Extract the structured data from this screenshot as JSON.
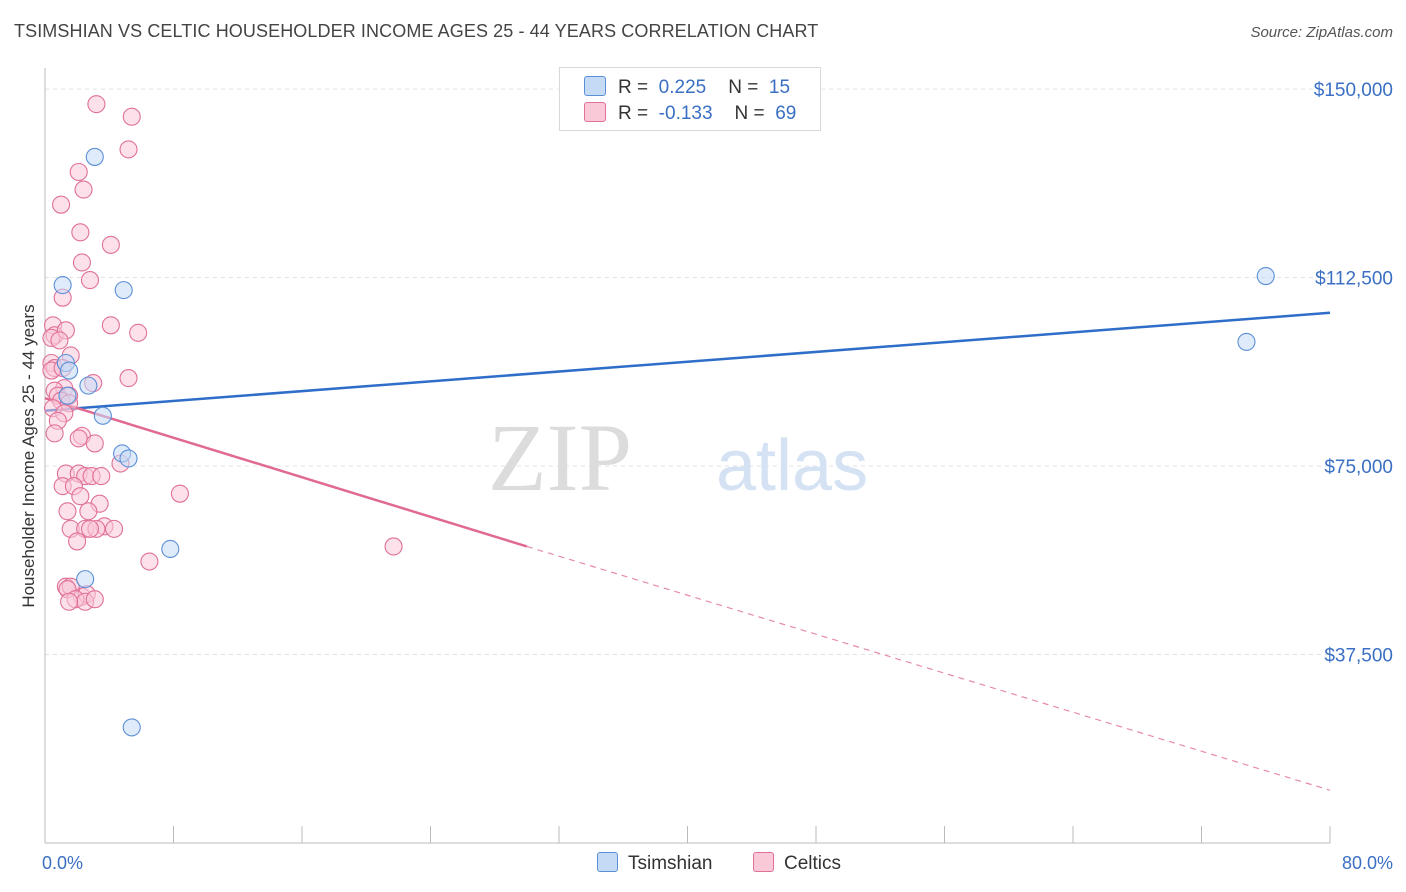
{
  "title": "TSIMSHIAN VS CELTIC HOUSEHOLDER INCOME AGES 25 - 44 YEARS CORRELATION CHART",
  "source": "Source: ZipAtlas.com",
  "watermark": {
    "zip": "ZIP",
    "atlas": "atlas"
  },
  "legend": {
    "items": [
      {
        "r_label": "R =",
        "r_value": "0.225",
        "n_label": "N =",
        "n_value": "15",
        "color": "#a9c8f0"
      },
      {
        "r_label": "R =",
        "r_value": "-0.133",
        "n_label": "N =",
        "n_value": "69",
        "color": "#f5b8cc"
      }
    ]
  },
  "chart_data": {
    "type": "scatter",
    "title": "TSIMSHIAN VS CELTIC HOUSEHOLDER INCOME AGES 25 - 44 YEARS CORRELATION CHART",
    "xlabel": "",
    "ylabel": "Householder Income Ages 25 - 44 years",
    "xlim": [
      0,
      80
    ],
    "ylim": [
      0,
      153000
    ],
    "x_tick_labels": [
      "0.0%",
      "80.0%"
    ],
    "y_ticks": [
      37500,
      75000,
      112500,
      150000
    ],
    "y_tick_labels": [
      "$37,500",
      "$75,000",
      "$112,500",
      "$150,000"
    ],
    "grid": true,
    "legend_position": "bottom-center",
    "series": [
      {
        "name": "Tsimshian",
        "color": "#5b8fd6",
        "fill": "#c5daf5",
        "points": [
          [
            1.1,
            111000
          ],
          [
            1.3,
            95500
          ],
          [
            1.5,
            94000
          ],
          [
            1.4,
            89000
          ],
          [
            2.7,
            91000
          ],
          [
            3.1,
            136500
          ],
          [
            3.6,
            85000
          ],
          [
            4.9,
            110000
          ],
          [
            4.8,
            77500
          ],
          [
            5.2,
            76500
          ],
          [
            2.5,
            52500
          ],
          [
            7.8,
            58500
          ],
          [
            5.4,
            23000
          ],
          [
            76.0,
            112800
          ],
          [
            74.8,
            99700
          ]
        ],
        "trend": {
          "x": [
            0,
            80
          ],
          "y": [
            86000,
            105500
          ]
        }
      },
      {
        "name": "Celtics",
        "color": "#e07098",
        "fill": "#f9c9d8",
        "points": [
          [
            3.2,
            147000
          ],
          [
            5.4,
            144500
          ],
          [
            5.2,
            138000
          ],
          [
            2.1,
            133500
          ],
          [
            2.4,
            130000
          ],
          [
            1.0,
            127000
          ],
          [
            2.2,
            121500
          ],
          [
            4.1,
            119000
          ],
          [
            2.3,
            115500
          ],
          [
            2.8,
            112000
          ],
          [
            1.1,
            108500
          ],
          [
            4.1,
            103000
          ],
          [
            5.8,
            101500
          ],
          [
            0.5,
            103000
          ],
          [
            0.6,
            101000
          ],
          [
            0.4,
            100500
          ],
          [
            1.3,
            102000
          ],
          [
            0.9,
            100000
          ],
          [
            1.6,
            97000
          ],
          [
            0.4,
            95500
          ],
          [
            0.6,
            94500
          ],
          [
            0.4,
            94000
          ],
          [
            1.1,
            94500
          ],
          [
            5.2,
            92500
          ],
          [
            3.0,
            91500
          ],
          [
            1.2,
            90500
          ],
          [
            0.6,
            90000
          ],
          [
            0.8,
            89000
          ],
          [
            1.5,
            89000
          ],
          [
            1.0,
            88000
          ],
          [
            1.5,
            87500
          ],
          [
            0.5,
            86500
          ],
          [
            1.2,
            85500
          ],
          [
            0.8,
            84000
          ],
          [
            0.6,
            81500
          ],
          [
            2.3,
            81000
          ],
          [
            2.1,
            80500
          ],
          [
            3.1,
            79500
          ],
          [
            4.7,
            75500
          ],
          [
            1.3,
            73500
          ],
          [
            2.1,
            73500
          ],
          [
            2.5,
            73000
          ],
          [
            2.9,
            73000
          ],
          [
            3.5,
            73000
          ],
          [
            1.1,
            71000
          ],
          [
            1.8,
            71000
          ],
          [
            8.4,
            69500
          ],
          [
            2.2,
            69000
          ],
          [
            3.4,
            67500
          ],
          [
            1.4,
            66000
          ],
          [
            2.7,
            66000
          ],
          [
            3.7,
            63000
          ],
          [
            1.6,
            62500
          ],
          [
            2.5,
            62500
          ],
          [
            3.2,
            62500
          ],
          [
            2.8,
            62500
          ],
          [
            4.3,
            62500
          ],
          [
            2.0,
            60000
          ],
          [
            6.5,
            56000
          ],
          [
            21.7,
            59000
          ],
          [
            1.3,
            51000
          ],
          [
            1.6,
            51000
          ],
          [
            1.4,
            50500
          ],
          [
            2.3,
            49000
          ],
          [
            2.6,
            49500
          ],
          [
            1.9,
            48500
          ],
          [
            2.5,
            48000
          ],
          [
            3.1,
            48500
          ],
          [
            1.5,
            48000
          ]
        ],
        "trend": {
          "x": [
            0,
            30
          ],
          "y": [
            88500,
            59000
          ]
        },
        "trend_extension": {
          "x": [
            30,
            80
          ],
          "y": [
            59000,
            10500
          ]
        }
      }
    ]
  },
  "bottom_legend": [
    {
      "label": "Tsimshian",
      "color": "#c5daf5",
      "border": "#5b8fd6"
    },
    {
      "label": "Celtics",
      "color": "#f9c9d8",
      "border": "#e07098"
    }
  ]
}
